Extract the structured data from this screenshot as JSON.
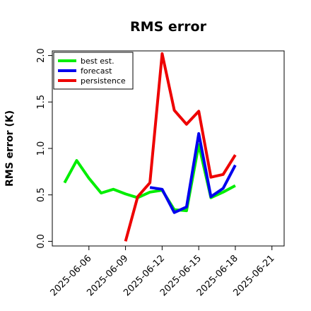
{
  "chart_data": {
    "type": "line",
    "title": "RMS error",
    "xlabel": "",
    "ylabel": "RMS error (K)",
    "x_tick_labels": [
      {
        "label": "2025-06-06",
        "color": "#000000"
      },
      {
        "label": "2025-06-09",
        "color": "#000000"
      },
      {
        "label": "2025-06-12",
        "color": "#228B22"
      },
      {
        "label": "2025-06-15",
        "color": "#000000"
      },
      {
        "label": "2025-06-18",
        "color": "#000000"
      },
      {
        "label": "2025-06-21",
        "color": "#000000"
      }
    ],
    "y_ticks": [
      "0.0",
      "0.5",
      "1.0",
      "1.5",
      "2.0"
    ],
    "ylim": [
      -0.05,
      2.05
    ],
    "xlim": [
      "2025-06-03",
      "2025-06-22"
    ],
    "grid": false,
    "legend_position": "top-left",
    "series": [
      {
        "name": "best est.",
        "color": "#00ee00",
        "points": [
          [
            "2025-06-04",
            0.63
          ],
          [
            "2025-06-05",
            0.87
          ],
          [
            "2025-06-06",
            0.68
          ],
          [
            "2025-06-07",
            0.52
          ],
          [
            "2025-06-08",
            0.56
          ],
          [
            "2025-06-09",
            0.51
          ],
          [
            "2025-06-10",
            0.47
          ],
          [
            "2025-06-11",
            0.53
          ],
          [
            "2025-06-12",
            0.55
          ],
          [
            "2025-06-13",
            0.34
          ],
          [
            "2025-06-14",
            0.33
          ],
          [
            "2025-06-15",
            1.04
          ],
          [
            "2025-06-16",
            0.47
          ],
          [
            "2025-06-17",
            0.53
          ],
          [
            "2025-06-18",
            0.6
          ]
        ]
      },
      {
        "name": "forecast",
        "color": "#0000ee",
        "points": [
          [
            "2025-06-11",
            0.58
          ],
          [
            "2025-06-12",
            0.56
          ],
          [
            "2025-06-13",
            0.31
          ],
          [
            "2025-06-14",
            0.37
          ],
          [
            "2025-06-15",
            1.16
          ],
          [
            "2025-06-16",
            0.48
          ],
          [
            "2025-06-17",
            0.57
          ],
          [
            "2025-06-18",
            0.82
          ]
        ]
      },
      {
        "name": "persistence",
        "color": "#ee0000",
        "points": [
          [
            "2025-06-09",
            0.0
          ],
          [
            "2025-06-10",
            0.48
          ],
          [
            "2025-06-11",
            0.63
          ],
          [
            "2025-06-12",
            2.02
          ],
          [
            "2025-06-13",
            1.41
          ],
          [
            "2025-06-14",
            1.26
          ],
          [
            "2025-06-15",
            1.4
          ],
          [
            "2025-06-16",
            0.69
          ],
          [
            "2025-06-17",
            0.72
          ],
          [
            "2025-06-18",
            0.93
          ]
        ]
      }
    ]
  }
}
